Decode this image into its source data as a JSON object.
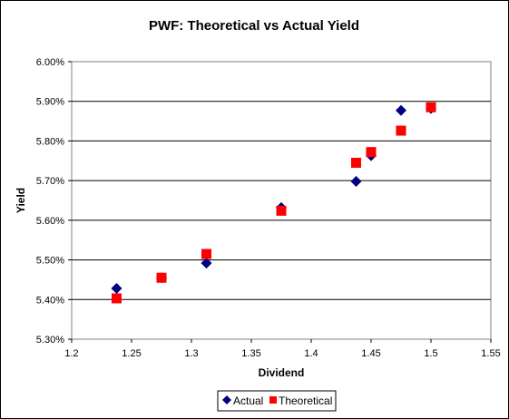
{
  "chart_data": {
    "type": "scatter",
    "title": "PWF: Theoretical vs Actual Yield",
    "xlabel": "Dividend",
    "ylabel": "Yield",
    "xlim": [
      1.2,
      1.55
    ],
    "ylim": [
      5.3,
      6.0
    ],
    "x_ticks": [
      "1.2",
      "1.25",
      "1.3",
      "1.35",
      "1.4",
      "1.45",
      "1.5",
      "1.55"
    ],
    "y_ticks": [
      "5.30%",
      "5.40%",
      "5.50%",
      "5.60%",
      "5.70%",
      "5.80%",
      "5.90%",
      "6.00%"
    ],
    "y_grid": true,
    "legend_position": "bottom",
    "series": [
      {
        "name": "Actual",
        "marker": "diamond",
        "color": "#000080",
        "points": [
          {
            "x": 1.2375,
            "y": 5.428
          },
          {
            "x": 1.275,
            "y": 5.455
          },
          {
            "x": 1.3125,
            "y": 5.492
          },
          {
            "x": 1.375,
            "y": 5.632
          },
          {
            "x": 1.4375,
            "y": 5.698
          },
          {
            "x": 1.45,
            "y": 5.763
          },
          {
            "x": 1.475,
            "y": 5.877
          },
          {
            "x": 1.5,
            "y": 5.882
          }
        ]
      },
      {
        "name": "Theoretical",
        "marker": "square",
        "color": "#FF0000",
        "points": [
          {
            "x": 1.2375,
            "y": 5.403
          },
          {
            "x": 1.275,
            "y": 5.455
          },
          {
            "x": 1.3125,
            "y": 5.515
          },
          {
            "x": 1.375,
            "y": 5.624
          },
          {
            "x": 1.4375,
            "y": 5.745
          },
          {
            "x": 1.45,
            "y": 5.772
          },
          {
            "x": 1.475,
            "y": 5.826
          },
          {
            "x": 1.5,
            "y": 5.885
          }
        ]
      }
    ]
  }
}
